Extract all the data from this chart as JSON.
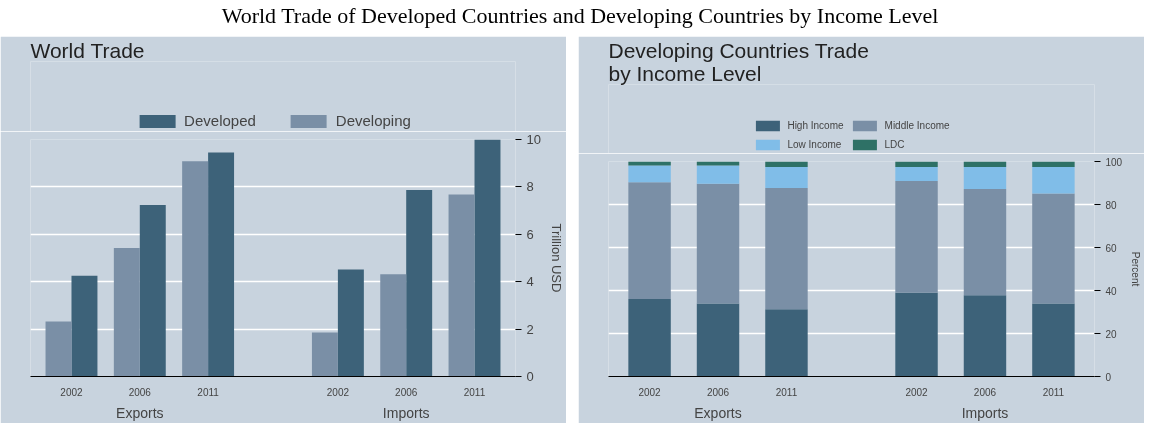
{
  "chart_data": [
    {
      "type": "bar",
      "title": "World Trade",
      "ylabel": "Trillion USD",
      "annotations": [
        "World Trade of Developed Countries and Developing Countries by Income Level",
        "Exports",
        "Imports"
      ],
      "categories": [
        "2002",
        "2006",
        "2011",
        "2002",
        "2006",
        "2011"
      ],
      "series": [
        {
          "name": "Developed",
          "color": "#3d6279",
          "values": [
            4.25,
            7.24,
            9.45,
            4.52,
            7.87,
            10.0
          ]
        },
        {
          "name": "Developing",
          "color": "#7a8fa6",
          "values": [
            2.32,
            5.42,
            9.08,
            1.86,
            4.31,
            7.68
          ]
        }
      ],
      "ylim": [
        0,
        10
      ],
      "yticks": [
        0,
        2,
        4,
        6,
        8,
        10
      ],
      "grid": "y",
      "legend": "top"
    },
    {
      "type": "bar",
      "stacked": true,
      "title": "Developing Countries Trade by Income Level",
      "ylabel": "Percent",
      "annotations": [
        "Exports",
        "Imports"
      ],
      "categories": [
        "2002",
        "2006",
        "2011",
        "2002",
        "2006",
        "2011"
      ],
      "series": [
        {
          "name": "High Income",
          "color": "#3d6279",
          "values": [
            36.0,
            33.9,
            31.3,
            39.0,
            37.8,
            33.9
          ]
        },
        {
          "name": "Middle Income",
          "color": "#7a8fa6",
          "values": [
            54.4,
            55.8,
            56.4,
            51.9,
            49.4,
            51.2
          ]
        },
        {
          "name": "Low Income",
          "color": "#80bde8",
          "values": [
            7.7,
            8.4,
            9.7,
            6.5,
            10.2,
            12.3
          ]
        },
        {
          "name": "LDC",
          "color": "#2e7166",
          "values": [
            1.9,
            1.9,
            2.6,
            2.6,
            2.6,
            2.6
          ]
        }
      ],
      "ylim": [
        0,
        100
      ],
      "yticks": [
        0,
        20,
        40,
        60,
        80,
        100
      ],
      "grid": "y",
      "legend": "top"
    }
  ]
}
